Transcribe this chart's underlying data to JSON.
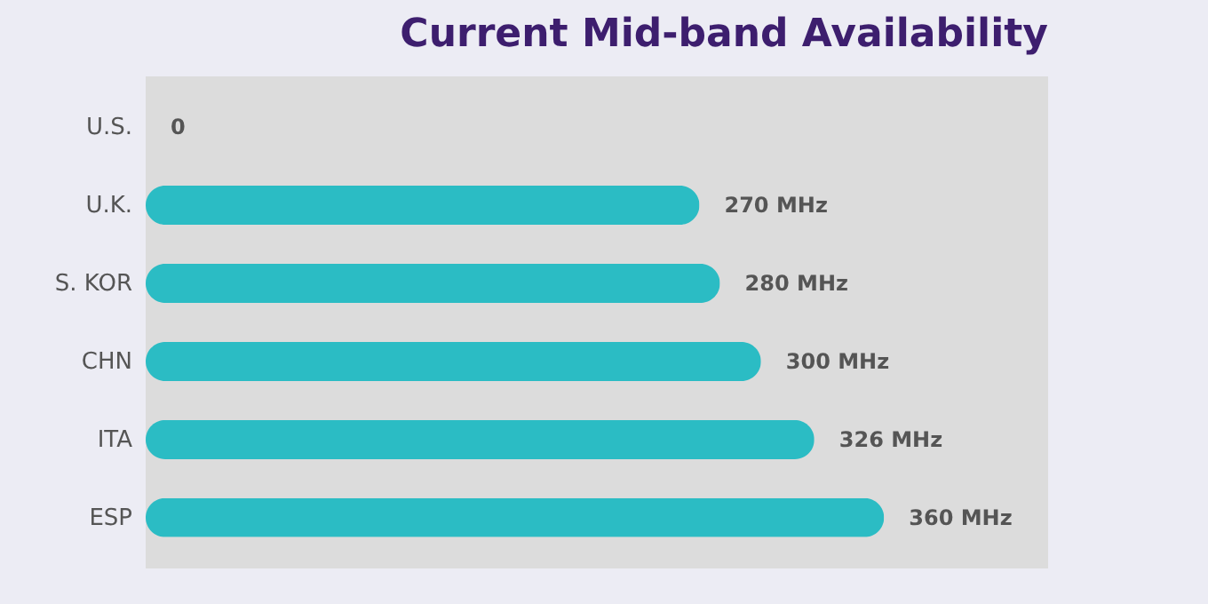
{
  "chart_data": {
    "type": "bar",
    "orientation": "horizontal",
    "title": "Current Mid-band Availability",
    "categories": [
      "U.S.",
      "U.K.",
      "S. KOR",
      "CHN",
      "ITA",
      "ESP"
    ],
    "values": [
      0,
      270,
      280,
      300,
      326,
      360
    ],
    "value_labels": [
      "0",
      "270 MHz",
      "280 MHz",
      "300 MHz",
      "326 MHz",
      "360 MHz"
    ],
    "color": "#2bbcc4",
    "xlim": [
      0,
      440
    ],
    "tick_labels": "y"
  }
}
